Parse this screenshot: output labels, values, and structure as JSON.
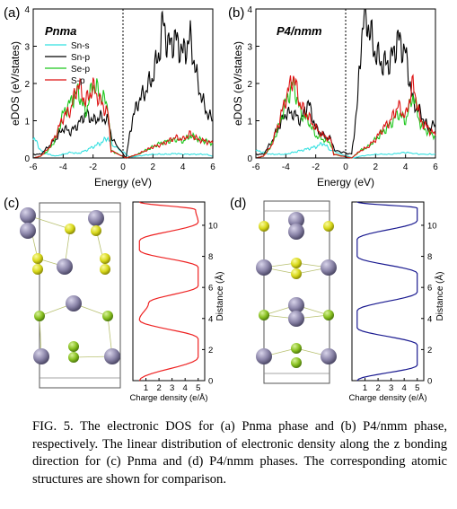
{
  "figure": {
    "panels": {
      "a": {
        "letter": "(a)",
        "phase": "Pnma"
      },
      "b": {
        "letter": "(b)",
        "phase": "P4/nmm"
      },
      "c": {
        "letter": "(c)"
      },
      "d": {
        "letter": "(d)"
      }
    },
    "caption": "FIG. 5.  The electronic DOS for (a) Pnma phase and (b) P4/nmm phase, respectively. The linear distribution of electronic density along the z bonding direction for (c) Pnma and (d) P4/nmm phases. The corresponding atomic structures are shown for comparison.",
    "colors": {
      "sn_s": "#33e0e0",
      "sn_p": "#000000",
      "se_p": "#1ec81e",
      "s_p": "#dd1111",
      "rho_c": "#ee2222",
      "rho_d": "#1a1a90",
      "sn_atom": "#8a84a8",
      "s_atom": "#d8d81a",
      "se_atom": "#88c020"
    }
  },
  "chart_data": [
    {
      "type": "line",
      "panel": "a",
      "xlabel": "Energy (eV)",
      "ylabel": "eDOS (eV/states)",
      "xlim": [
        -6,
        6
      ],
      "ylim": [
        0,
        4
      ],
      "xticks": [
        "-6",
        "-4",
        "-2",
        "0",
        "2",
        "4",
        "6"
      ],
      "yticks": [
        "0",
        "1",
        "2",
        "3",
        "4"
      ],
      "fermi_level": 0,
      "legend": "top-left",
      "series": [
        {
          "name": "Sn-s",
          "color": "#33e0e0",
          "x": [
            -6,
            -5.8,
            -5.5,
            -5,
            -4.5,
            -4,
            -3.5,
            -3,
            -2.5,
            -2,
            -1.5,
            -1,
            -0.7,
            0.5,
            1,
            1.5,
            2,
            2.5,
            3,
            3.5,
            4,
            4.5,
            5,
            5.5,
            6
          ],
          "y": [
            0.5,
            0.45,
            0.2,
            0.1,
            0.05,
            0.1,
            0.15,
            0.12,
            0.2,
            0.3,
            0.4,
            0.55,
            0.35,
            0.02,
            0.05,
            0.08,
            0.1,
            0.1,
            0.1,
            0.12,
            0.1,
            0.1,
            0.1,
            0.1,
            0.05
          ]
        },
        {
          "name": "Sn-p",
          "color": "#000000",
          "x": [
            -6,
            -5.5,
            -5,
            -4.5,
            -4,
            -3.5,
            -3,
            -2.5,
            -2,
            -1.5,
            -1,
            -0.7,
            0.2,
            0.4,
            0.6,
            1,
            1.5,
            2,
            2.5,
            2.7,
            3,
            3.5,
            4,
            4.5,
            5,
            5.5,
            6
          ],
          "y": [
            0.1,
            0.1,
            0.3,
            0.5,
            0.8,
            0.7,
            0.9,
            1.2,
            1.0,
            1.1,
            1.0,
            0.5,
            0.0,
            0.5,
            1.0,
            1.5,
            1.8,
            2.2,
            3.0,
            3.7,
            3.0,
            3.2,
            2.8,
            3.2,
            2.0,
            1.3,
            1.0
          ]
        },
        {
          "name": "Se-p",
          "color": "#1ec81e",
          "x": [
            -6,
            -5.5,
            -5,
            -4.5,
            -4,
            -3.5,
            -3,
            -2.5,
            -2,
            -1.5,
            -1,
            -0.8,
            0.2,
            1,
            1.5,
            2,
            2.5,
            3,
            3.5,
            4,
            4.5,
            5,
            5.5,
            6
          ],
          "y": [
            0.0,
            0.05,
            0.2,
            0.5,
            1.2,
            1.5,
            1.8,
            1.2,
            2.0,
            1.7,
            1.4,
            0.2,
            0.0,
            0.1,
            0.2,
            0.3,
            0.4,
            0.45,
            0.5,
            0.45,
            0.6,
            0.5,
            0.45,
            0.4
          ]
        },
        {
          "name": "S-p",
          "color": "#dd1111",
          "x": [
            -6,
            -5.5,
            -5,
            -4.5,
            -4,
            -3.5,
            -3,
            -2.5,
            -2,
            -1.5,
            -1,
            -0.8,
            0.2,
            1,
            1.5,
            2,
            2.5,
            3,
            3.5,
            4,
            4.5,
            5,
            5.5,
            6
          ],
          "y": [
            0.0,
            0.05,
            0.25,
            0.6,
            1.1,
            1.3,
            2.0,
            1.5,
            1.9,
            1.5,
            1.2,
            0.2,
            0.0,
            0.1,
            0.2,
            0.3,
            0.35,
            0.45,
            0.55,
            0.5,
            0.65,
            0.5,
            0.45,
            0.4
          ]
        }
      ]
    },
    {
      "type": "line",
      "panel": "b",
      "xlabel": "Energy (eV)",
      "ylabel": "eDOS (eV/states)",
      "xlim": [
        -6,
        6
      ],
      "ylim": [
        0,
        4
      ],
      "xticks": [
        "-6",
        "-4",
        "-2",
        "0",
        "2",
        "4",
        "6"
      ],
      "yticks": [
        "0",
        "1",
        "2",
        "3",
        "4"
      ],
      "fermi_level": 0,
      "series": [
        {
          "name": "Sn-s",
          "color": "#33e0e0",
          "x": [
            -6,
            -5.5,
            -5,
            -4.5,
            -4,
            -3.5,
            -3,
            -2.5,
            -2,
            -1.5,
            -1,
            0.5,
            1,
            2,
            3,
            4,
            5,
            6
          ],
          "y": [
            0.2,
            0.15,
            0.1,
            0.1,
            0.1,
            0.15,
            0.2,
            0.25,
            0.3,
            0.4,
            0.2,
            0.0,
            0.05,
            0.1,
            0.1,
            0.15,
            0.1,
            0.1
          ]
        },
        {
          "name": "Sn-p",
          "color": "#000000",
          "x": [
            -6,
            -5.5,
            -5,
            -4.5,
            -4,
            -3.5,
            -3,
            -2.5,
            -2,
            -1.5,
            -1,
            -0.7,
            0.4,
            0.8,
            1.0,
            1.3,
            1.6,
            2,
            2.5,
            3,
            3.5,
            4,
            4.5,
            5,
            5.5,
            6
          ],
          "y": [
            0.1,
            0.1,
            0.4,
            0.8,
            1.2,
            1.2,
            1.0,
            1.5,
            0.8,
            0.6,
            0.5,
            0.2,
            0.1,
            1.5,
            3.0,
            4.0,
            3.4,
            2.8,
            2.5,
            2.6,
            3.2,
            2.8,
            1.5,
            1.2,
            0.8,
            0.9
          ]
        },
        {
          "name": "Se-p",
          "color": "#1ec81e",
          "x": [
            -6,
            -5.5,
            -5,
            -4.5,
            -4,
            -3.5,
            -3,
            -2.5,
            -2,
            -1.5,
            -1,
            -0.8,
            0.4,
            1,
            1.5,
            2,
            2.5,
            3,
            3.5,
            4,
            4.5,
            5,
            5.5,
            6
          ],
          "y": [
            0.0,
            0.05,
            0.3,
            0.8,
            1.5,
            2.0,
            1.2,
            1.0,
            0.6,
            0.5,
            0.4,
            0.1,
            0.0,
            0.2,
            0.3,
            0.5,
            0.7,
            0.9,
            1.2,
            1.0,
            1.7,
            0.9,
            0.7,
            0.6
          ]
        },
        {
          "name": "S-p",
          "color": "#dd1111",
          "x": [
            -6,
            -5.5,
            -5,
            -4.5,
            -4,
            -3.5,
            -3,
            -2.5,
            -2,
            -1.5,
            -1,
            -0.8,
            0.4,
            1,
            1.5,
            2,
            2.5,
            3,
            3.5,
            4,
            4.5,
            5,
            5.5,
            6
          ],
          "y": [
            0.0,
            0.05,
            0.3,
            0.9,
            1.6,
            2.2,
            1.4,
            1.1,
            0.8,
            0.6,
            0.5,
            0.1,
            0.0,
            0.2,
            0.3,
            0.5,
            0.8,
            1.0,
            1.4,
            1.1,
            2.0,
            1.0,
            0.8,
            0.6
          ]
        }
      ]
    },
    {
      "type": "line",
      "panel": "c",
      "xlabel": "Charge density (e/Å)",
      "ylabel": "Distance (Å)",
      "xlim": [
        0,
        5.5
      ],
      "ylim": [
        0,
        11.5
      ],
      "xticks": [
        "1",
        "2",
        "3",
        "4",
        "5"
      ],
      "yticks": [
        "0",
        "2",
        "4",
        "6",
        "8",
        "10"
      ],
      "series": [
        {
          "color": "#ee2222",
          "x": [
            0.5,
            5.0,
            5.0,
            0.5,
            1.2,
            5.0,
            5.0,
            0.5,
            0.5,
            5.0,
            4.8,
            0.5
          ],
          "y": [
            0.0,
            1.5,
            2.7,
            3.9,
            5.0,
            6.1,
            7.3,
            8.4,
            9.0,
            10.2,
            11.0,
            11.5
          ]
        }
      ]
    },
    {
      "type": "line",
      "panel": "d",
      "xlabel": "Charge density (e/Å)",
      "ylabel": "Distance (Å)",
      "xlim": [
        0,
        5.5
      ],
      "ylim": [
        0,
        11.5
      ],
      "xticks": [
        "1",
        "2",
        "3",
        "4",
        "5"
      ],
      "yticks": [
        "0",
        "2",
        "4",
        "6",
        "8",
        "10"
      ],
      "series": [
        {
          "color": "#1a1a90",
          "x": [
            0.4,
            5.0,
            5.0,
            0.4,
            0.4,
            5.0,
            5.0,
            0.4,
            0.4,
            5.0,
            5.0,
            0.4
          ],
          "y": [
            0.0,
            1.0,
            2.3,
            3.4,
            4.5,
            5.7,
            6.9,
            8.0,
            9.1,
            10.3,
            11.1,
            11.5
          ]
        }
      ]
    }
  ]
}
